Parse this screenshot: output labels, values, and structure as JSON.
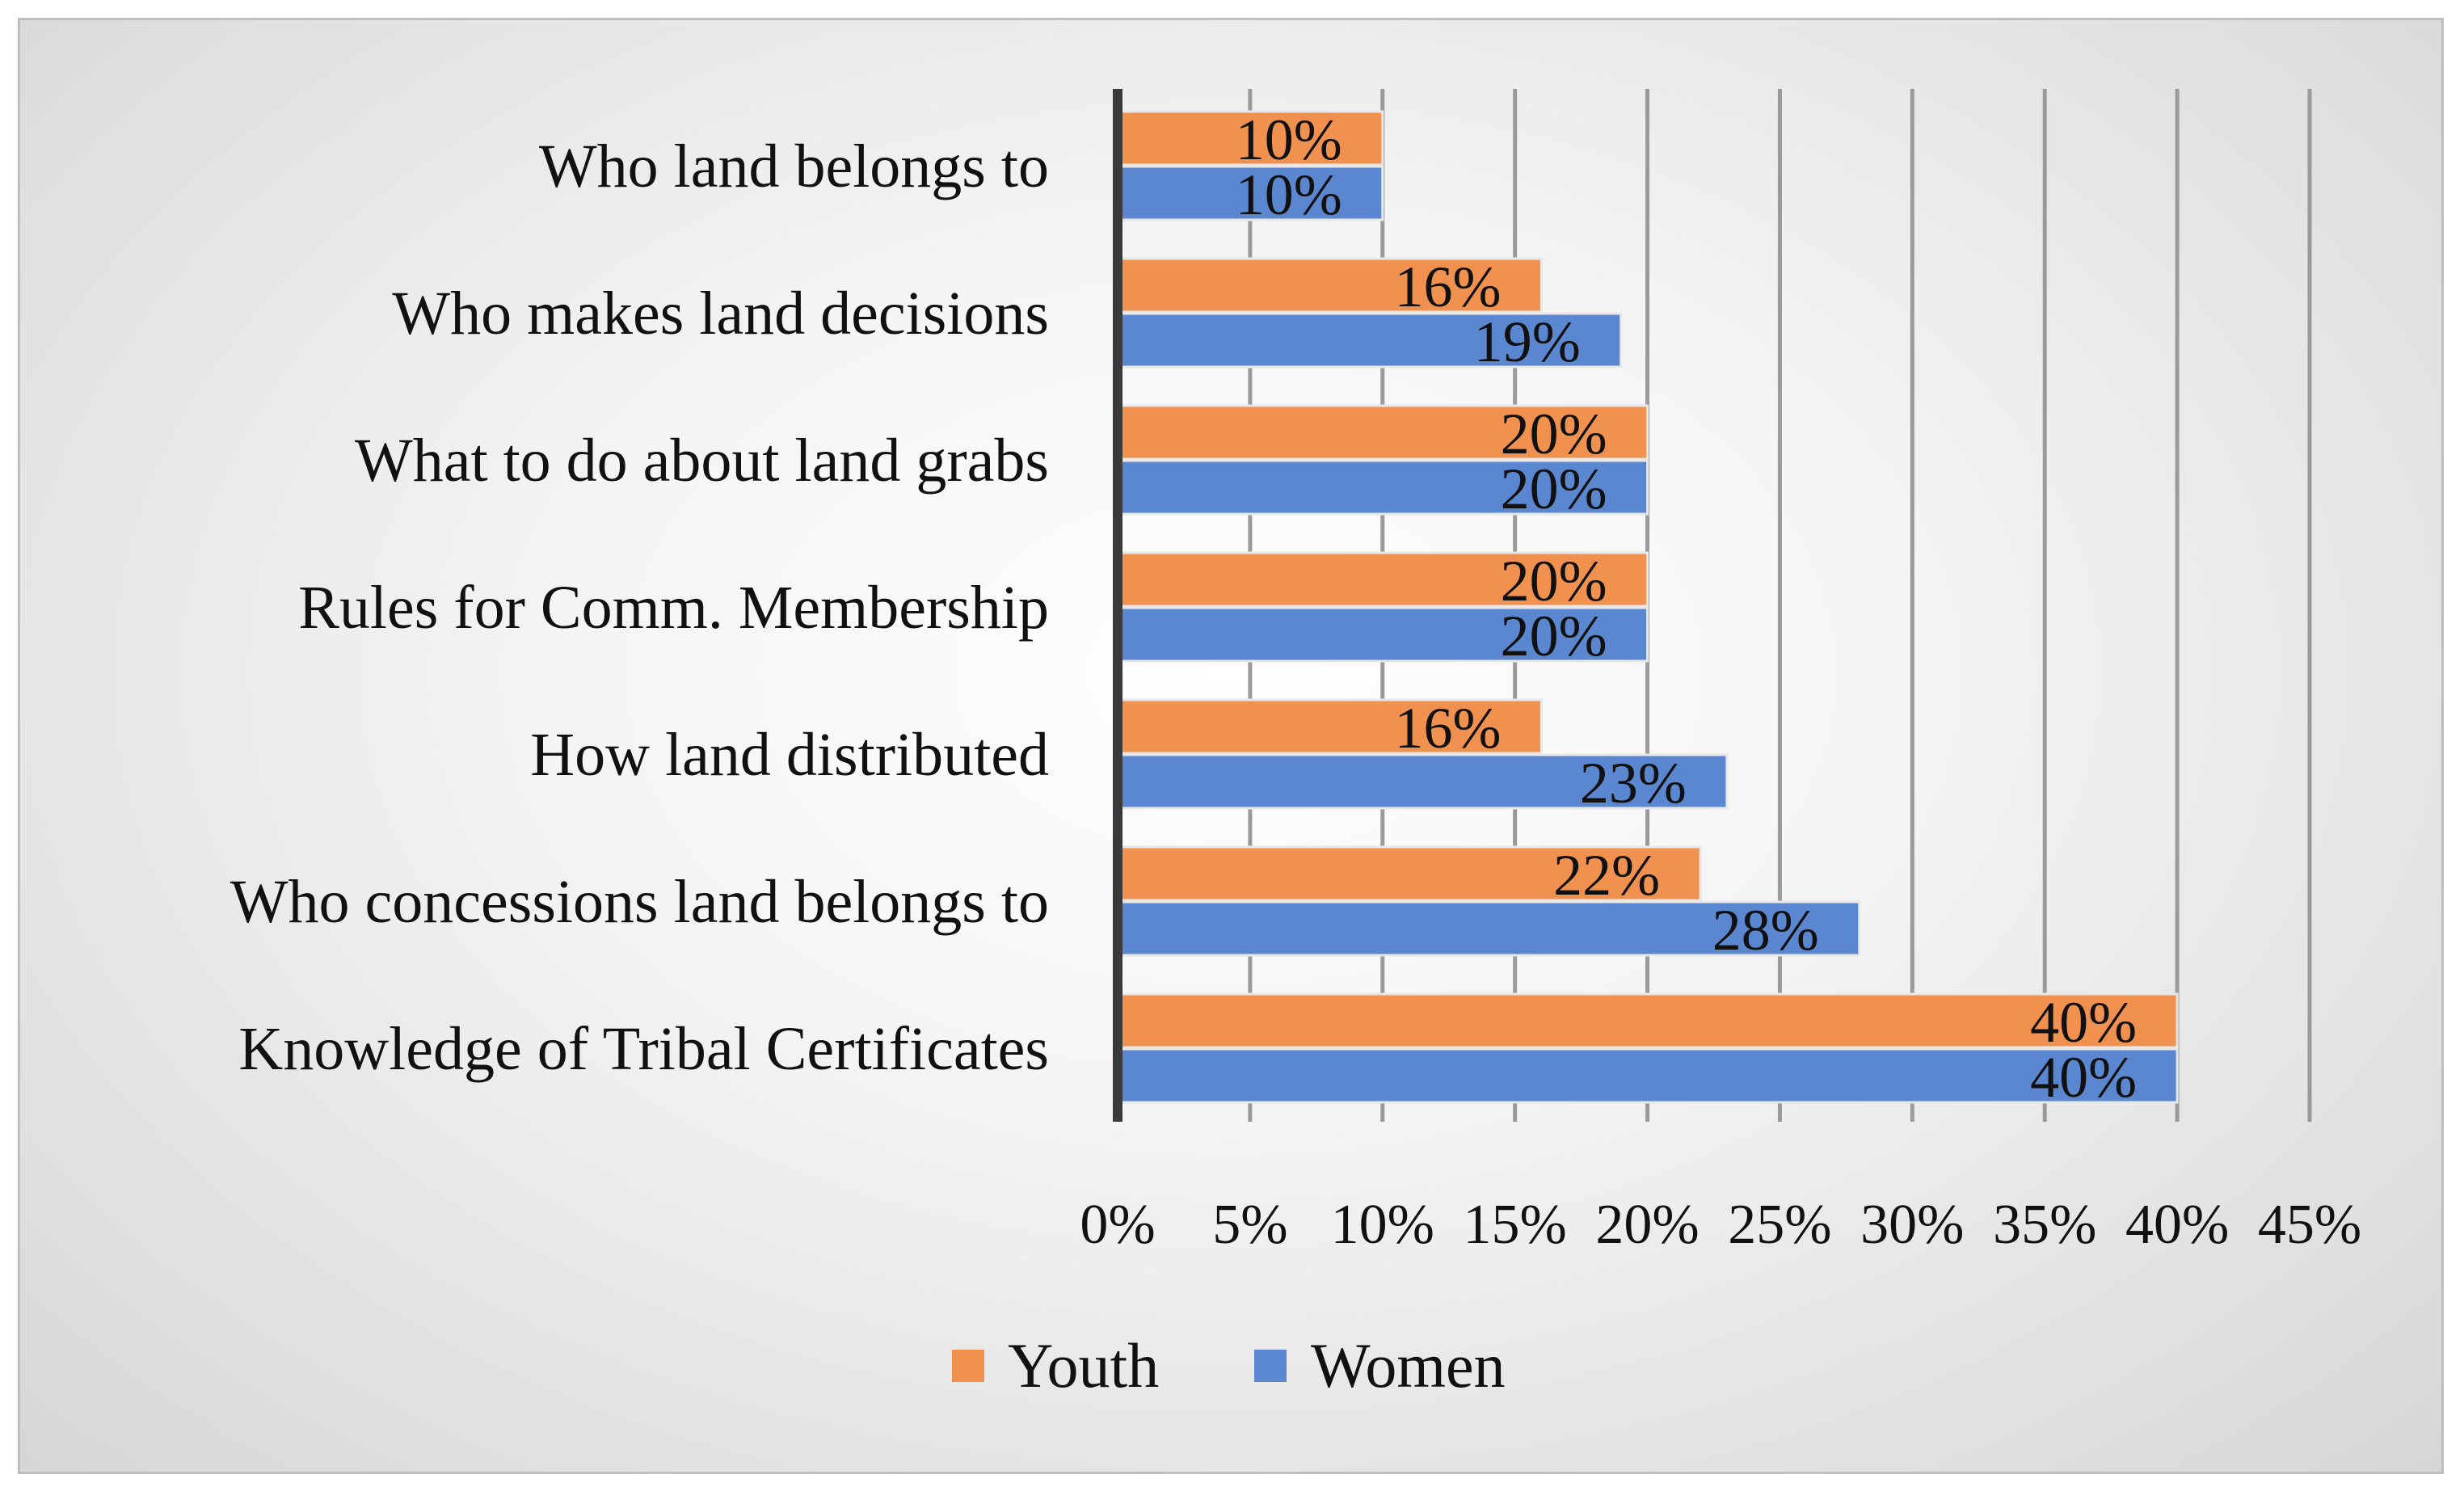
{
  "chart_data": {
    "type": "bar",
    "orientation": "horizontal",
    "title": "",
    "categories": [
      "Who land belongs to",
      "Who makes land decisions",
      "What to do about land grabs",
      "Rules for Comm. Membership",
      "How land distributed",
      "Who concessions land belongs to",
      "Knowledge of Tribal Certificates"
    ],
    "series": [
      {
        "name": "Youth",
        "color": "#F0914F",
        "values": [
          10,
          16,
          20,
          20,
          16,
          22,
          40
        ]
      },
      {
        "name": "Women",
        "color": "#5B87D0",
        "values": [
          10,
          19,
          20,
          20,
          23,
          28,
          40
        ]
      }
    ],
    "data_labels": {
      "Youth": [
        "10%",
        "16%",
        "20%",
        "20%",
        "16%",
        "22%",
        "40%"
      ],
      "Women": [
        "10%",
        "19%",
        "20%",
        "20%",
        "23%",
        "28%",
        "40%"
      ]
    },
    "xlim": [
      0,
      45
    ],
    "xticks": [
      0,
      5,
      10,
      15,
      20,
      25,
      30,
      35,
      40,
      45
    ],
    "xtick_labels": [
      "0%",
      "5%",
      "10%",
      "15%",
      "20%",
      "25%",
      "30%",
      "35%",
      "40%",
      "45%"
    ],
    "xlabel": "",
    "ylabel": "",
    "grid": "vertical",
    "legend": {
      "position": "bottom",
      "entries": [
        "Youth",
        "Women"
      ]
    }
  }
}
